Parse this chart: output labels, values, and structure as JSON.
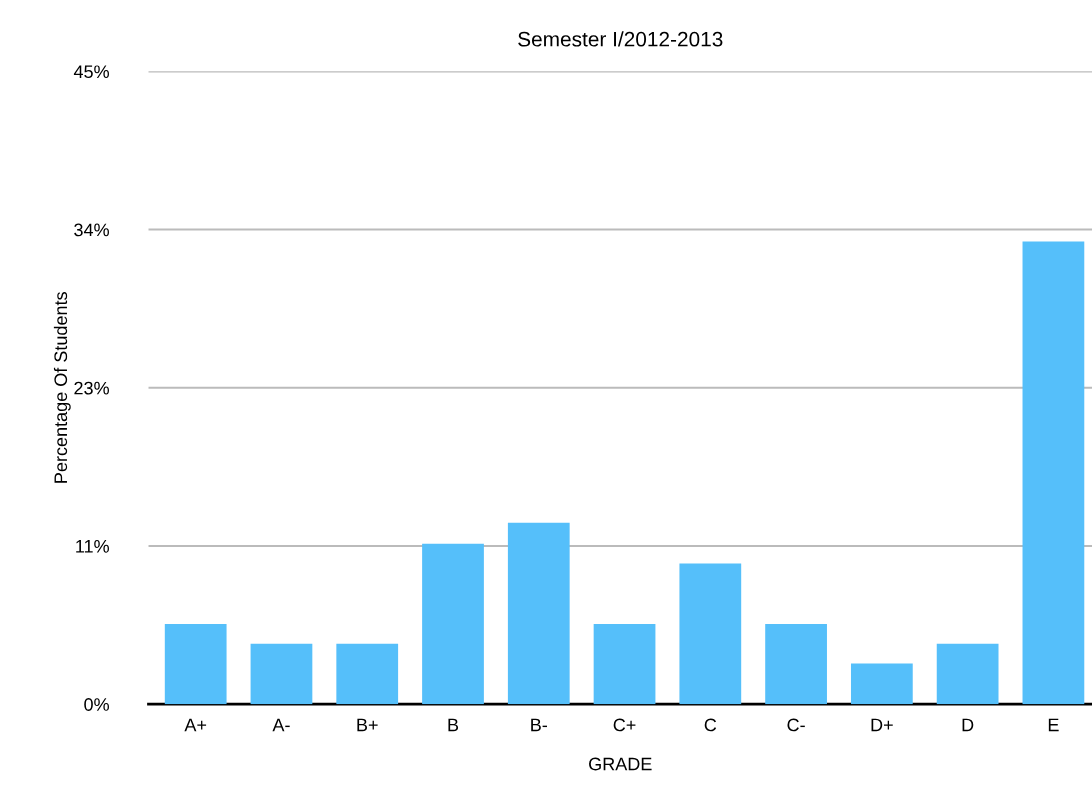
{
  "chart_data": {
    "type": "bar",
    "title": "Semester I/2012-2013",
    "xlabel": "GRADE",
    "ylabel": "Percentage Of Students",
    "categories": [
      "A+",
      "A-",
      "B+",
      "B",
      "B-",
      "C+",
      "C",
      "C-",
      "D+",
      "D",
      "E"
    ],
    "values": [
      5.7,
      4.3,
      4.3,
      11.4,
      12.9,
      5.7,
      10.0,
      5.7,
      2.9,
      4.3,
      32.9
    ],
    "color": "#55bffa",
    "ylim": [
      0,
      45
    ],
    "yticks": [
      {
        "value": 0,
        "label": "0%"
      },
      {
        "value": 11.25,
        "label": "11%"
      },
      {
        "value": 22.5,
        "label": "23%"
      },
      {
        "value": 33.75,
        "label": "34%"
      },
      {
        "value": 45,
        "label": "45%"
      }
    ],
    "grid": "y"
  }
}
